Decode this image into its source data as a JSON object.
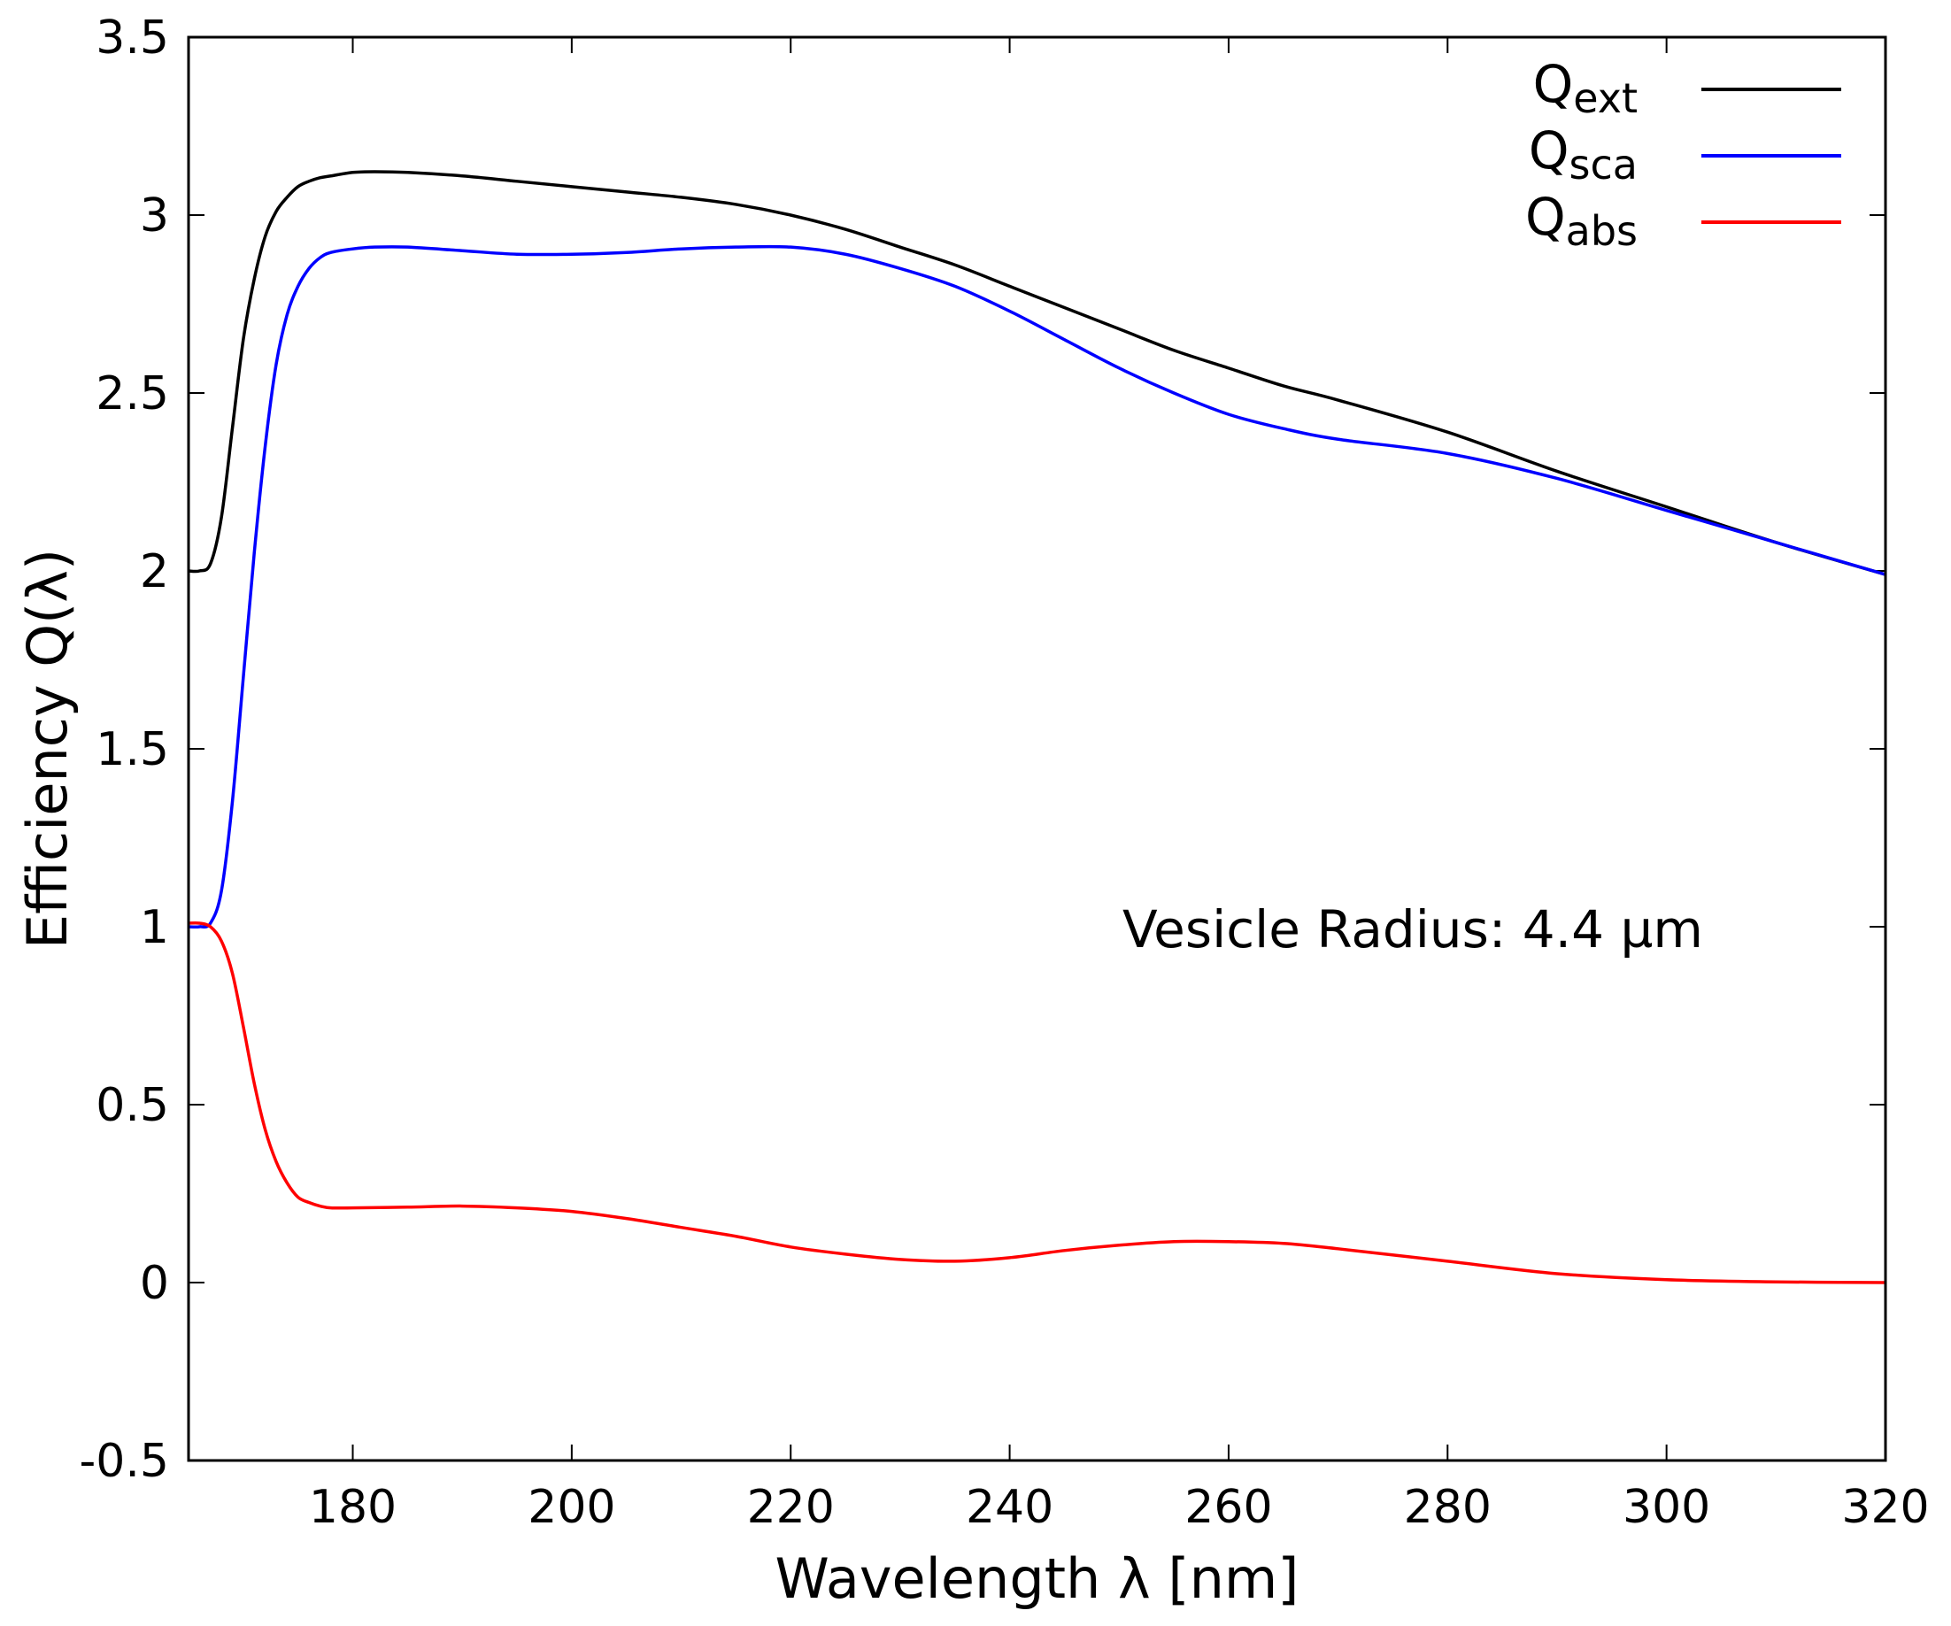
{
  "chart_data": {
    "type": "line",
    "xlabel": "Wavelength λ [nm]",
    "ylabel": "Efficiency Q(λ)",
    "xlim": [
      165,
      320
    ],
    "ylim": [
      -0.5,
      3.5
    ],
    "xticks": [
      180,
      200,
      220,
      240,
      260,
      280,
      300,
      320
    ],
    "xtick_labels": [
      "180",
      "200",
      "220",
      "240",
      "260",
      "280",
      "300",
      "320"
    ],
    "yticks": [
      -0.5,
      0,
      0.5,
      1,
      1.5,
      2,
      2.5,
      3,
      3.5
    ],
    "ytick_labels": [
      "-0.5",
      "0",
      "0.5",
      "1",
      "1.5",
      "2",
      "2.5",
      "3",
      "3.5"
    ],
    "grid": false,
    "legend_position": "top-right",
    "annotation": "Vesicle Radius: 4.4 µm",
    "series": [
      {
        "name": "Q",
        "subscript": "ext",
        "color": "#000000",
        "x": [
          165,
          166,
          167,
          168,
          169,
          170,
          171,
          172,
          173,
          174,
          175,
          176,
          177,
          178,
          180,
          182,
          185,
          190,
          195,
          200,
          205,
          210,
          215,
          220,
          225,
          230,
          235,
          240,
          245,
          250,
          255,
          260,
          265,
          270,
          280,
          290,
          300,
          310,
          320
        ],
        "y": [
          2.0,
          2.0,
          2.02,
          2.15,
          2.4,
          2.65,
          2.82,
          2.94,
          3.01,
          3.05,
          3.08,
          3.095,
          3.105,
          3.11,
          3.12,
          3.122,
          3.12,
          3.11,
          3.095,
          3.08,
          3.065,
          3.05,
          3.03,
          3.0,
          2.96,
          2.91,
          2.86,
          2.8,
          2.74,
          2.68,
          2.62,
          2.57,
          2.52,
          2.48,
          2.39,
          2.28,
          2.18,
          2.08,
          1.99
        ]
      },
      {
        "name": "Q",
        "subscript": "sca",
        "color": "#0000ff",
        "x": [
          165,
          166,
          167,
          168,
          169,
          170,
          171,
          172,
          173,
          174,
          175,
          176,
          177,
          178,
          180,
          182,
          185,
          190,
          195,
          200,
          205,
          210,
          215,
          220,
          225,
          230,
          235,
          240,
          245,
          250,
          255,
          260,
          265,
          270,
          280,
          290,
          300,
          310,
          320
        ],
        "y": [
          1.0,
          1.0,
          1.01,
          1.1,
          1.35,
          1.7,
          2.05,
          2.35,
          2.58,
          2.72,
          2.8,
          2.85,
          2.88,
          2.895,
          2.905,
          2.91,
          2.91,
          2.9,
          2.89,
          2.89,
          2.895,
          2.905,
          2.91,
          2.91,
          2.89,
          2.85,
          2.8,
          2.73,
          2.65,
          2.57,
          2.5,
          2.44,
          2.4,
          2.37,
          2.33,
          2.26,
          2.17,
          2.08,
          1.99
        ]
      },
      {
        "name": "Q",
        "subscript": "abs",
        "color": "#ff0000",
        "x": [
          165,
          166,
          167,
          168,
          169,
          170,
          171,
          172,
          173,
          174,
          175,
          176,
          177,
          178,
          180,
          185,
          190,
          195,
          200,
          205,
          210,
          215,
          220,
          225,
          230,
          235,
          240,
          245,
          250,
          255,
          260,
          265,
          270,
          280,
          290,
          300,
          310,
          320
        ],
        "y": [
          1.01,
          1.01,
          1.0,
          0.96,
          0.87,
          0.72,
          0.56,
          0.43,
          0.34,
          0.28,
          0.24,
          0.225,
          0.215,
          0.21,
          0.21,
          0.212,
          0.215,
          0.21,
          0.2,
          0.18,
          0.155,
          0.13,
          0.1,
          0.08,
          0.065,
          0.06,
          0.07,
          0.09,
          0.105,
          0.115,
          0.115,
          0.11,
          0.095,
          0.06,
          0.025,
          0.008,
          0.002,
          0.0
        ]
      }
    ]
  }
}
